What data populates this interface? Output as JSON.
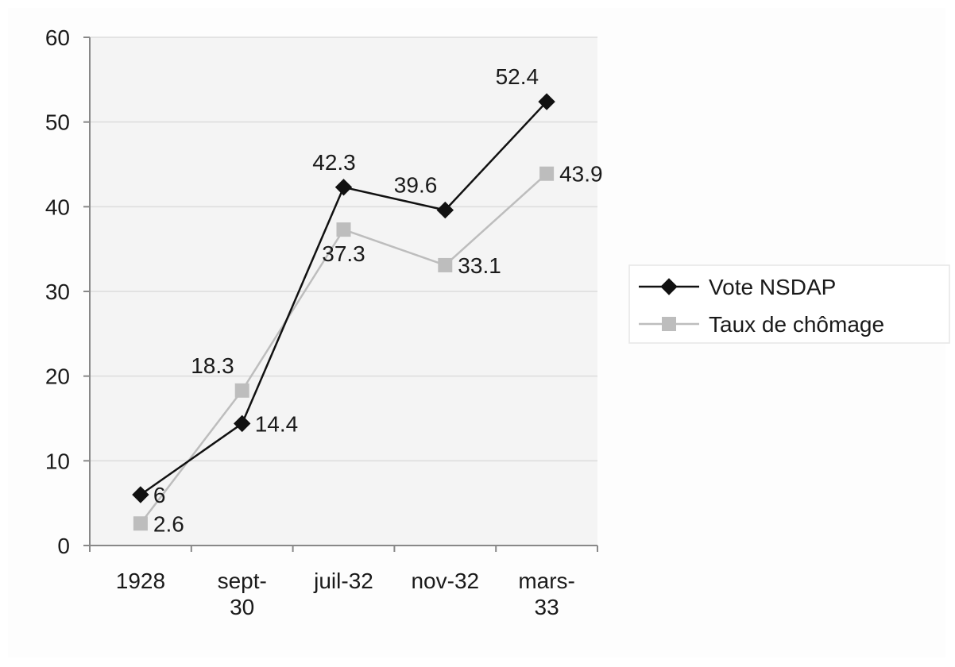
{
  "chart_data": {
    "type": "line",
    "categories": [
      [
        "1928"
      ],
      [
        "sept-",
        "30"
      ],
      [
        "juil-32"
      ],
      [
        "nov-32"
      ],
      [
        "mars-",
        "33"
      ]
    ],
    "ylim": [
      0,
      60
    ],
    "yticks": [
      0,
      10,
      20,
      30,
      40,
      50,
      60
    ],
    "grid": true,
    "legend_position": "right",
    "series": [
      {
        "name": "Vote NSDAP",
        "values": [
          6,
          14.4,
          42.3,
          39.6,
          52.4
        ],
        "color": "#111111",
        "marker": "diamond",
        "label_placement": [
          "right",
          "right",
          "above",
          "above-left",
          "above-left"
        ]
      },
      {
        "name": "Taux de chômage",
        "values": [
          2.6,
          18.3,
          37.3,
          33.1,
          43.9
        ],
        "color": "#bdbdbd",
        "marker": "square",
        "label_placement": [
          "right",
          "above-left",
          "below",
          "right",
          "right"
        ]
      }
    ],
    "colors": {
      "plot_background": "#f4f4f4",
      "gridline": "#dcdcdc",
      "axis": "#888888"
    }
  }
}
